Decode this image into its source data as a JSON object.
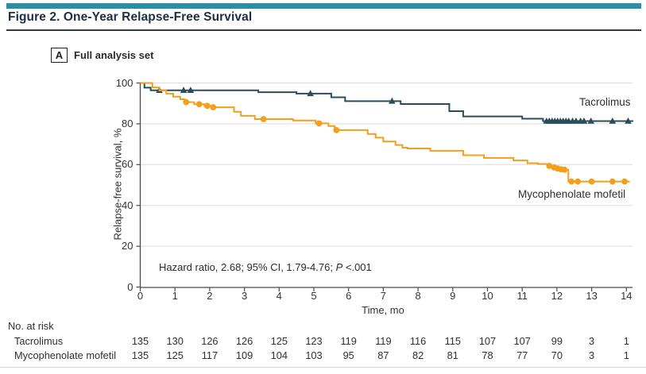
{
  "figure": {
    "title": "Figure 2. One-Year Relapse-Free Survival",
    "panel_label": "A",
    "panel_title": "Full analysis set"
  },
  "chart_data": {
    "type": "line",
    "subtype": "kaplan_meier_step",
    "title": "One-Year Relapse-Free Survival, Full analysis set",
    "xlabel": "Time, mo",
    "ylabel": "Relapse-free survival, %",
    "xlim": [
      0,
      14.5
    ],
    "ylim": [
      0,
      100
    ],
    "xticks": [
      0,
      1,
      2,
      3,
      4,
      5,
      6,
      7,
      8,
      9,
      10,
      11,
      12,
      13,
      14
    ],
    "yticks": [
      0,
      20,
      40,
      60,
      80,
      100
    ],
    "grid": "horizontal",
    "annotation": {
      "text": "Hazard ratio, 2.68; 95% CI, 1.79-4.76; ",
      "p_label": "P",
      "p_value": " <.001"
    },
    "series": [
      {
        "name": "Tacrolimus",
        "color": "#2B4C5A",
        "marker": "triangle",
        "steps": [
          [
            0,
            100
          ],
          [
            0.12,
            97.7
          ],
          [
            0.3,
            96.4
          ],
          [
            3.4,
            95.5
          ],
          [
            4.5,
            94.8
          ],
          [
            5.5,
            93.0
          ],
          [
            5.9,
            91.1
          ],
          [
            7.5,
            89.7
          ],
          [
            8.9,
            86.2
          ],
          [
            9.3,
            83.6
          ],
          [
            11.0,
            82.5
          ],
          [
            11.6,
            81.3
          ]
        ],
        "end_time": 14.2,
        "censor_times": [
          0.55,
          1.25,
          1.45,
          4.9,
          7.25,
          11.7,
          11.78,
          11.86,
          11.94,
          12.02,
          12.1,
          12.18,
          12.26,
          12.34,
          12.45,
          12.55,
          12.68,
          12.78,
          12.98,
          13.6,
          14.05
        ]
      },
      {
        "name": "Mycophenolate mofetil",
        "color": "#F49E1E",
        "marker": "circle",
        "steps": [
          [
            0,
            100
          ],
          [
            0.35,
            97.8
          ],
          [
            0.55,
            96.3
          ],
          [
            0.75,
            94.8
          ],
          [
            0.95,
            93.3
          ],
          [
            1.15,
            92.0
          ],
          [
            1.28,
            90.6
          ],
          [
            1.55,
            89.6
          ],
          [
            1.85,
            88.8
          ],
          [
            2.05,
            88.1
          ],
          [
            2.7,
            85.9
          ],
          [
            2.9,
            83.9
          ],
          [
            3.3,
            82.3
          ],
          [
            4.4,
            81.6
          ],
          [
            5.05,
            80.2
          ],
          [
            5.42,
            78.9
          ],
          [
            5.6,
            76.9
          ],
          [
            6.55,
            75.0
          ],
          [
            6.78,
            73.2
          ],
          [
            7.0,
            71.3
          ],
          [
            7.35,
            69.6
          ],
          [
            7.55,
            68.3
          ],
          [
            7.7,
            67.9
          ],
          [
            8.35,
            66.8
          ],
          [
            9.3,
            64.6
          ],
          [
            9.9,
            63.3
          ],
          [
            10.75,
            62.0
          ],
          [
            11.15,
            60.7
          ],
          [
            11.45,
            60.3
          ],
          [
            11.75,
            59.4
          ],
          [
            11.9,
            58.6
          ],
          [
            12.0,
            58.1
          ],
          [
            12.1,
            57.7
          ],
          [
            12.2,
            57.5
          ],
          [
            12.33,
            51.7
          ]
        ],
        "end_time": 14.1,
        "censor_times": [
          1.32,
          1.7,
          1.93,
          2.1,
          3.55,
          5.15,
          5.65,
          11.78,
          11.92,
          12.02,
          12.12,
          12.22,
          12.42,
          12.6,
          13.0,
          13.6,
          13.95
        ]
      }
    ],
    "risk_table": {
      "title": "No. at risk",
      "rows": [
        {
          "label": "Tacrolimus",
          "counts": [
            "135",
            "130",
            "126",
            "126",
            "125",
            "123",
            "119",
            "119",
            "116",
            "115",
            "107",
            "107",
            "99",
            "3",
            "1"
          ]
        },
        {
          "label": "Mycophenolate mofetil",
          "counts": [
            "135",
            "125",
            "117",
            "109",
            "104",
            "103",
            "95",
            "87",
            "82",
            "81",
            "78",
            "77",
            "70",
            "3",
            "1"
          ]
        }
      ]
    }
  },
  "colors": {
    "top_bar": "#2B8EA5",
    "title_text": "#1F2E45",
    "grid": "#DCDCDC",
    "axis": "#4A4A4A",
    "text": "#333333"
  }
}
